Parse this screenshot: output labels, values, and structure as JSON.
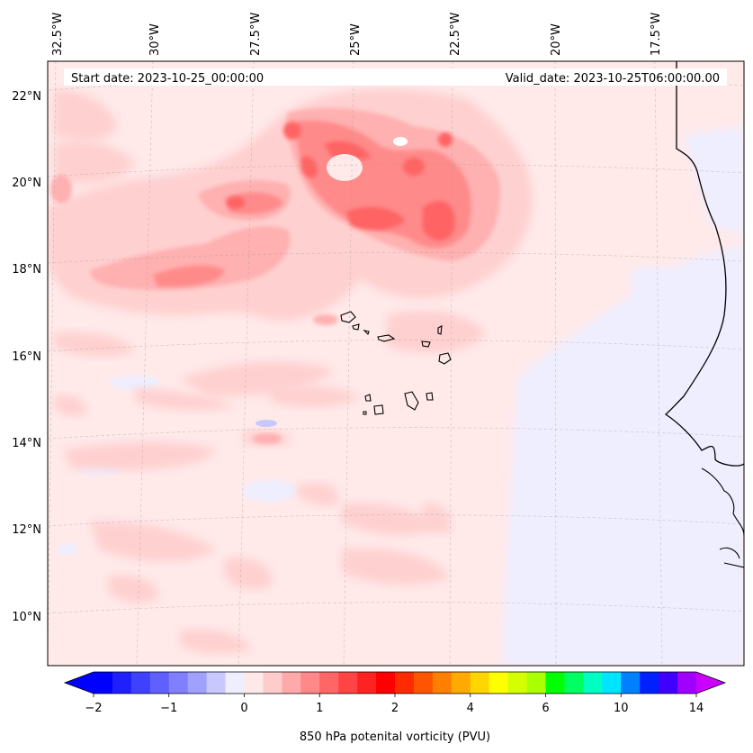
{
  "map": {
    "start_date_label": "Start date: 2023-10-25_00:00:00",
    "valid_date_label": "Valid_date: 2023-10-25T06:00:00.00",
    "lon_labels": [
      "32.5°W",
      "30°W",
      "27.5°W",
      "25°W",
      "22.5°W",
      "20°W",
      "17.5°W"
    ],
    "lat_labels": [
      "22°N",
      "20°N",
      "18°N",
      "16°N",
      "14°N",
      "12°N",
      "10°N"
    ],
    "variable": "850 hPa potential vorticity",
    "units": "PVU"
  },
  "colorbar": {
    "label": "850 hPa potenital vorticity (PVU)",
    "tick_labels": [
      "−2",
      "−1",
      "0",
      "1",
      "2",
      "4",
      "6",
      "10",
      "14"
    ],
    "colors": [
      "#0000ff",
      "#2020ff",
      "#4040ff",
      "#6060ff",
      "#8080ff",
      "#a0a0ff",
      "#c8c8ff",
      "#eeeeff",
      "#ffe8e8",
      "#ffcccc",
      "#ffaaaa",
      "#ff8888",
      "#ff6666",
      "#ff4444",
      "#ff2222",
      "#ff0000",
      "#ff2a00",
      "#ff5500",
      "#ff8000",
      "#ffaa00",
      "#ffd500",
      "#ffff00",
      "#d5ff00",
      "#aaff00",
      "#00ff00",
      "#00ff60",
      "#00ffc0",
      "#00e5ff",
      "#0080ff",
      "#0020ff",
      "#4000ff",
      "#a000ff"
    ],
    "under_color": "#0000ff",
    "over_color": "#cc00ff"
  },
  "legend_colors": {
    "background": "#ffe9e9",
    "light_pink": "#ffd0d0",
    "pink": "#ffb0b0",
    "salmon": "#ff8a8a",
    "red": "#ff6464",
    "deep_red": "#ff4040",
    "pale_blue": "#eeeeff",
    "blue": "#c8c8ff"
  }
}
